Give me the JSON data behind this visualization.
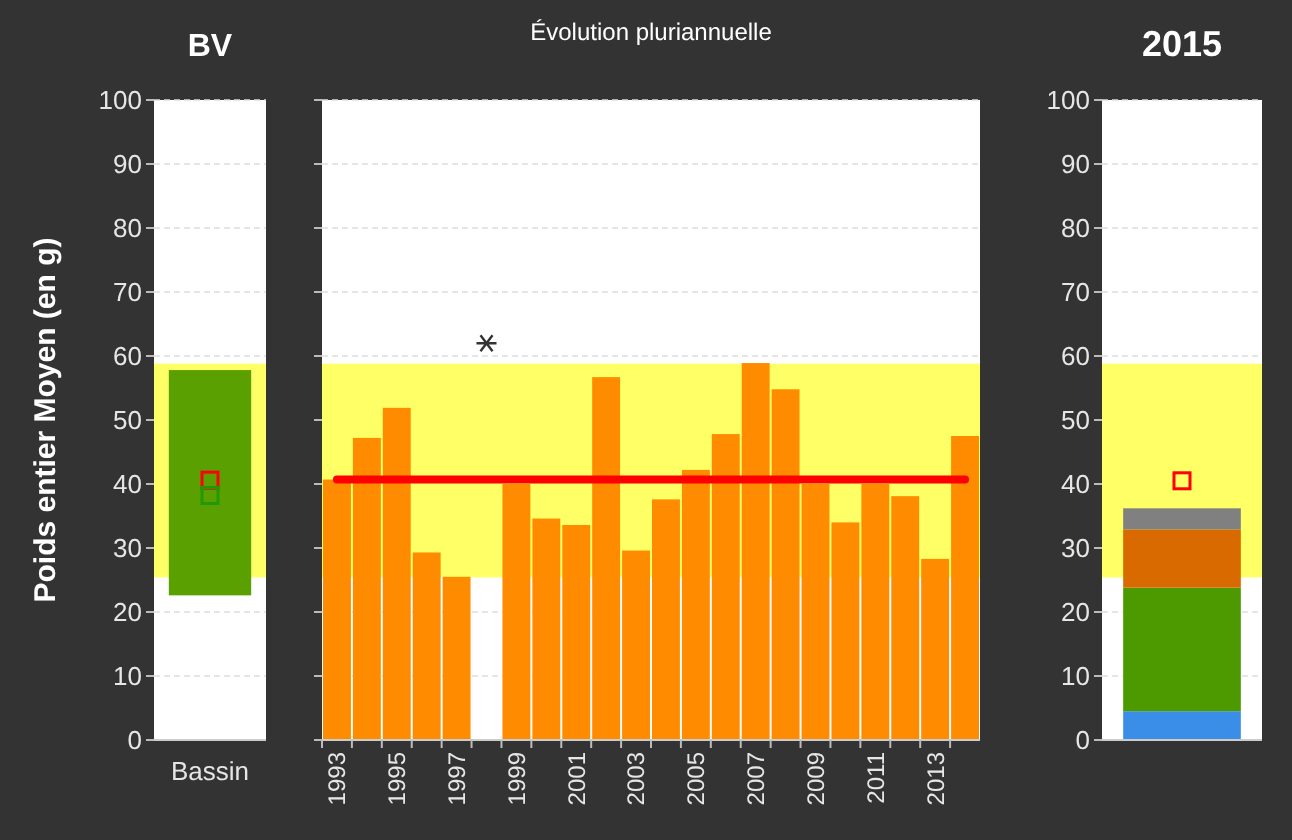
{
  "chart_data": [
    {
      "type": "bar",
      "title": "BV",
      "ylabel": "Poids entier Moyen (en g)",
      "categories": [
        "Bassin"
      ],
      "ylim": [
        0,
        100
      ],
      "yticks": [
        0,
        10,
        20,
        30,
        40,
        50,
        60,
        70,
        80,
        90,
        100
      ],
      "grid": "y",
      "bands": [
        {
          "axis": "y",
          "from": 25.4,
          "to": 58.8,
          "color": "#ffff66"
        }
      ],
      "series": [
        {
          "color": "#5aa000",
          "base": [
            22.6
          ],
          "values": [
            35.2
          ]
        },
        {
          "type": "scatter",
          "marker": "square",
          "color": "#ff0000",
          "values": [
            40.6
          ]
        },
        {
          "type": "scatter",
          "marker": "square",
          "color": "#1f9a00",
          "values": [
            38.2
          ]
        }
      ]
    },
    {
      "type": "bar",
      "title": "Évolution pluriannuelle",
      "categories": [
        "1993",
        null,
        "1995",
        null,
        "1997",
        null,
        "1999",
        null,
        "2001",
        null,
        "2003",
        null,
        "2005",
        null,
        "2007",
        null,
        "2009",
        null,
        "2011",
        null,
        "2013",
        null
      ],
      "ylim": [
        0,
        100
      ],
      "yticks": [
        0,
        10,
        20,
        30,
        40,
        50,
        60,
        70,
        80,
        90,
        100
      ],
      "grid": "y",
      "tick_labels": "x",
      "bands": [
        {
          "axis": "y",
          "from": 25.4,
          "to": 58.8,
          "color": "#ffff66"
        }
      ],
      "ref_lines": [
        {
          "axis": "y",
          "value": 40.7,
          "color": "#ff0000"
        }
      ],
      "series": [
        {
          "color": "#ff8c00",
          "values": [
            40.7,
            47.2,
            51.9,
            29.3,
            25.5,
            null,
            40,
            34.6,
            33.6,
            56.7,
            29.6,
            37.6,
            42.2,
            47.8,
            58.9,
            54.8,
            40,
            34,
            40,
            38.1,
            28.3,
            47.5
          ]
        },
        {
          "type": "scatter",
          "marker": "cross",
          "color": "#333333",
          "values": [
            null,
            null,
            null,
            null,
            null,
            62,
            null,
            null,
            null,
            null,
            null,
            null,
            null,
            null,
            null,
            null,
            null,
            null,
            null,
            null,
            null,
            null
          ]
        }
      ]
    },
    {
      "type": "bar",
      "title": "2015",
      "categories": [
        null
      ],
      "ylim": [
        0,
        100
      ],
      "yticks": [
        0,
        10,
        20,
        30,
        40,
        50,
        60,
        70,
        80,
        90,
        100
      ],
      "grid": "y",
      "tick_labels": "y",
      "stacked": true,
      "bands": [
        {
          "axis": "y",
          "from": 25.4,
          "to": 58.8,
          "color": "#ffff66"
        }
      ],
      "series": [
        {
          "color": "#3a8ee8",
          "values": [
            4.5
          ]
        },
        {
          "color": "#4c9a00",
          "values": [
            19.3
          ]
        },
        {
          "color": "#d86a00",
          "values": [
            9.1
          ]
        },
        {
          "color": "#808080",
          "values": [
            3.3
          ]
        },
        {
          "type": "scatter",
          "marker": "square",
          "color": "#ff0000",
          "values": [
            40.5
          ]
        }
      ]
    }
  ]
}
